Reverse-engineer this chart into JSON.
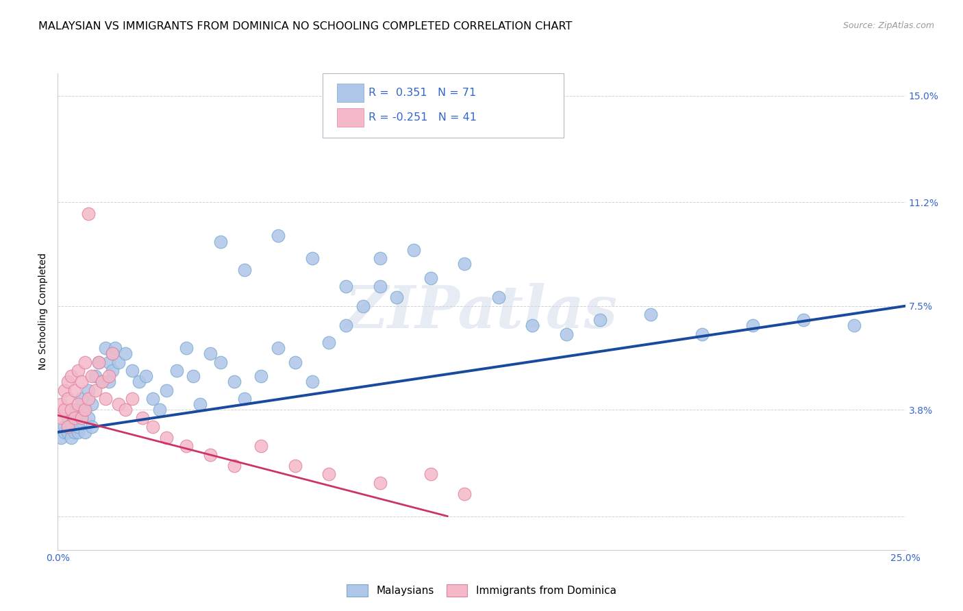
{
  "title": "MALAYSIAN VS IMMIGRANTS FROM DOMINICA NO SCHOOLING COMPLETED CORRELATION CHART",
  "source": "Source: ZipAtlas.com",
  "ylabel": "No Schooling Completed",
  "xlim": [
    0.0,
    0.25
  ],
  "ylim": [
    -0.012,
    0.158
  ],
  "xticks": [
    0.0,
    0.05,
    0.1,
    0.15,
    0.2,
    0.25
  ],
  "xticklabels": [
    "0.0%",
    "",
    "",
    "",
    "",
    "25.0%"
  ],
  "ytick_positions": [
    0.0,
    0.038,
    0.075,
    0.112,
    0.15
  ],
  "yticklabels": [
    "",
    "3.8%",
    "7.5%",
    "11.2%",
    "15.0%"
  ],
  "blue_dot_color": "#aec6e8",
  "blue_edge_color": "#7aaad0",
  "pink_dot_color": "#f4b8c8",
  "pink_edge_color": "#e080a0",
  "blue_line_color": "#1a4a9e",
  "pink_line_color": "#cc3366",
  "tick_color": "#3366cc",
  "watermark": "ZIPatlas",
  "title_fontsize": 11.5,
  "axis_label_fontsize": 10,
  "tick_fontsize": 10,
  "source_fontsize": 9,
  "blue_trend_x": [
    0.0,
    0.25
  ],
  "blue_trend_y": [
    0.03,
    0.075
  ],
  "pink_trend_x": [
    0.0,
    0.115
  ],
  "pink_trend_y": [
    0.036,
    0.0
  ],
  "malaysians_x": [
    0.001,
    0.002,
    0.002,
    0.003,
    0.003,
    0.004,
    0.004,
    0.005,
    0.005,
    0.006,
    0.006,
    0.007,
    0.007,
    0.008,
    0.008,
    0.009,
    0.009,
    0.01,
    0.01,
    0.011,
    0.012,
    0.013,
    0.014,
    0.015,
    0.015,
    0.016,
    0.016,
    0.017,
    0.018,
    0.02,
    0.022,
    0.024,
    0.026,
    0.028,
    0.03,
    0.032,
    0.035,
    0.038,
    0.04,
    0.042,
    0.045,
    0.048,
    0.052,
    0.055,
    0.06,
    0.065,
    0.07,
    0.075,
    0.08,
    0.085,
    0.09,
    0.095,
    0.1,
    0.11,
    0.12,
    0.13,
    0.14,
    0.15,
    0.16,
    0.175,
    0.19,
    0.205,
    0.22,
    0.235,
    0.048,
    0.055,
    0.095,
    0.105,
    0.065,
    0.075,
    0.085
  ],
  "malaysians_y": [
    0.028,
    0.03,
    0.032,
    0.035,
    0.03,
    0.028,
    0.033,
    0.03,
    0.038,
    0.03,
    0.032,
    0.035,
    0.042,
    0.03,
    0.038,
    0.035,
    0.045,
    0.032,
    0.04,
    0.05,
    0.055,
    0.048,
    0.06,
    0.048,
    0.055,
    0.052,
    0.058,
    0.06,
    0.055,
    0.058,
    0.052,
    0.048,
    0.05,
    0.042,
    0.038,
    0.045,
    0.052,
    0.06,
    0.05,
    0.04,
    0.058,
    0.055,
    0.048,
    0.042,
    0.05,
    0.06,
    0.055,
    0.048,
    0.062,
    0.068,
    0.075,
    0.082,
    0.078,
    0.085,
    0.09,
    0.078,
    0.068,
    0.065,
    0.07,
    0.072,
    0.065,
    0.068,
    0.07,
    0.068,
    0.098,
    0.088,
    0.092,
    0.095,
    0.1,
    0.092,
    0.082
  ],
  "dominica_x": [
    0.001,
    0.001,
    0.002,
    0.002,
    0.003,
    0.003,
    0.003,
    0.004,
    0.004,
    0.005,
    0.005,
    0.006,
    0.006,
    0.007,
    0.007,
    0.008,
    0.008,
    0.009,
    0.009,
    0.01,
    0.011,
    0.012,
    0.013,
    0.014,
    0.015,
    0.016,
    0.018,
    0.02,
    0.022,
    0.025,
    0.028,
    0.032,
    0.038,
    0.045,
    0.052,
    0.06,
    0.07,
    0.08,
    0.095,
    0.11,
    0.12
  ],
  "dominica_y": [
    0.035,
    0.04,
    0.038,
    0.045,
    0.032,
    0.042,
    0.048,
    0.038,
    0.05,
    0.035,
    0.045,
    0.04,
    0.052,
    0.035,
    0.048,
    0.038,
    0.055,
    0.108,
    0.042,
    0.05,
    0.045,
    0.055,
    0.048,
    0.042,
    0.05,
    0.058,
    0.04,
    0.038,
    0.042,
    0.035,
    0.032,
    0.028,
    0.025,
    0.022,
    0.018,
    0.025,
    0.018,
    0.015,
    0.012,
    0.015,
    0.008
  ]
}
